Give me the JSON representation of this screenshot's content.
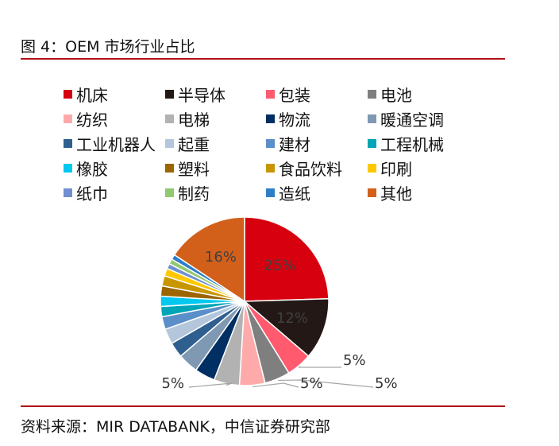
{
  "header": {
    "title": "图 4：OEM 市场行业占比"
  },
  "footer": {
    "source": "资料来源：MIR DATABANK，中信证券研究部"
  },
  "chart_data": {
    "type": "pie",
    "title": "",
    "legend_position": "top",
    "slices": [
      {
        "label": "机床",
        "value": 25,
        "color": "#d7000f",
        "data_label": "25%"
      },
      {
        "label": "半导体",
        "value": 12,
        "color": "#231815",
        "data_label": "12%"
      },
      {
        "label": "包装",
        "value": 5,
        "color": "#ff5a6e",
        "data_label": "5%"
      },
      {
        "label": "电池",
        "value": 5,
        "color": "#7f7f7f",
        "data_label": "5%"
      },
      {
        "label": "纺织",
        "value": 5,
        "color": "#ffaaaa",
        "data_label": "5%"
      },
      {
        "label": "电梯",
        "value": 5,
        "color": "#b2b2b2",
        "data_label": "5%"
      },
      {
        "label": "物流",
        "value": 4,
        "color": "#002f63",
        "data_label": ""
      },
      {
        "label": "暖通空调",
        "value": 4,
        "color": "#8099b3",
        "data_label": ""
      },
      {
        "label": "工业机器人",
        "value": 3,
        "color": "#2f5f8f",
        "data_label": ""
      },
      {
        "label": "起重",
        "value": 3,
        "color": "#b3c6dc",
        "data_label": ""
      },
      {
        "label": "建材",
        "value": 2.5,
        "color": "#5b8fc9",
        "data_label": ""
      },
      {
        "label": "工程机械",
        "value": 2,
        "color": "#00a5b8",
        "data_label": ""
      },
      {
        "label": "橡胶",
        "value": 2,
        "color": "#00c8f0",
        "data_label": ""
      },
      {
        "label": "塑料",
        "value": 2,
        "color": "#9c6500",
        "data_label": ""
      },
      {
        "label": "食品饮料",
        "value": 2,
        "color": "#c89600",
        "data_label": ""
      },
      {
        "label": "印刷",
        "value": 1.5,
        "color": "#ffc800",
        "data_label": ""
      },
      {
        "label": "纸巾",
        "value": 1,
        "color": "#6f8fcf",
        "data_label": ""
      },
      {
        "label": "制药",
        "value": 1,
        "color": "#92c870",
        "data_label": ""
      },
      {
        "label": "造纸",
        "value": 1,
        "color": "#2f7fc8",
        "data_label": ""
      },
      {
        "label": "其他",
        "value": 16,
        "color": "#d2601a",
        "data_label": "16%"
      }
    ]
  }
}
